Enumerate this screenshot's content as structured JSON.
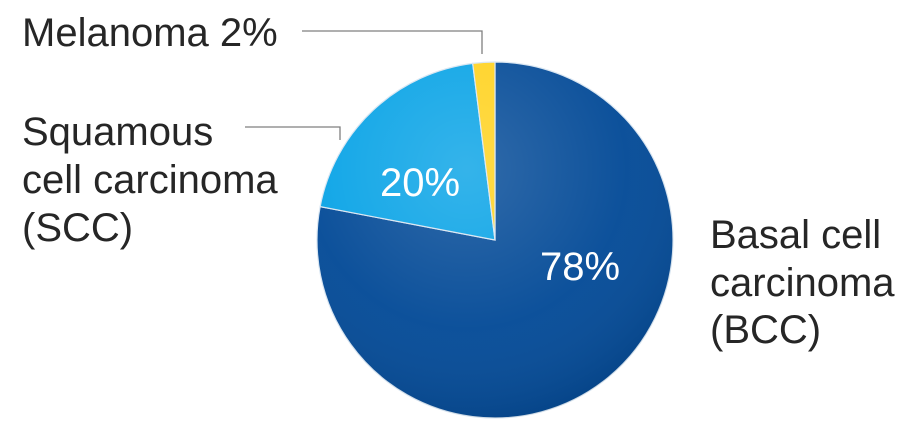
{
  "chart_data": {
    "type": "pie",
    "title": "",
    "slices": [
      {
        "label": "Basal cell carcinoma (BCC)",
        "label_lines": [
          "Basal cell",
          "carcinoma",
          "(BCC)"
        ],
        "value": 78,
        "value_label": "78%",
        "color": "#034a97"
      },
      {
        "label": "Squamous cell carcinoma (SCC)",
        "label_lines": [
          "Squamous",
          "cell carcinoma",
          "(SCC)"
        ],
        "value": 20,
        "value_label": "20%",
        "color": "#08a3e6"
      },
      {
        "label": "Melanoma",
        "label_lines": [
          "Melanoma 2%"
        ],
        "value": 2,
        "value_label": "2%",
        "color": "#ffd21f"
      }
    ],
    "start_angle": "12 o'clock",
    "direction": "clockwise"
  }
}
